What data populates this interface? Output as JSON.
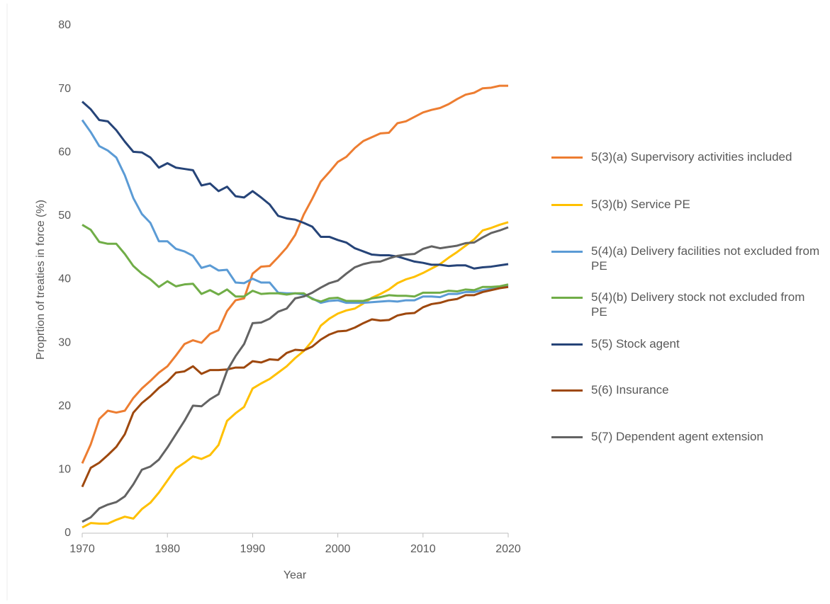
{
  "chart_data": {
    "type": "line",
    "x_label": "Year",
    "y_label": "Proprtion of treaties in force (%)",
    "x": [
      1970,
      1971,
      1972,
      1973,
      1974,
      1975,
      1976,
      1977,
      1978,
      1979,
      1980,
      1981,
      1982,
      1983,
      1984,
      1985,
      1986,
      1987,
      1988,
      1989,
      1990,
      1991,
      1992,
      1993,
      1994,
      1995,
      1996,
      1997,
      1998,
      1999,
      2000,
      2001,
      2002,
      2003,
      2004,
      2005,
      2006,
      2007,
      2008,
      2009,
      2010,
      2011,
      2012,
      2013,
      2014,
      2015,
      2016,
      2017,
      2018,
      2019,
      2020
    ],
    "xlim": [
      1970,
      2020
    ],
    "xticks": [
      1970,
      1980,
      1990,
      2000,
      2010,
      2020
    ],
    "ylim": [
      0,
      80
    ],
    "yticks": [
      0,
      10,
      20,
      30,
      40,
      50,
      60,
      70,
      80
    ],
    "grid": false,
    "legend": "right",
    "series": [
      {
        "name": "5(3)(a) Supervisory activities included",
        "color": "#ed7d31",
        "values": [
          11,
          14,
          18,
          19.3,
          19,
          19.3,
          21.3,
          22.8,
          24,
          25.3,
          26.3,
          28,
          29.8,
          30.4,
          30,
          31.4,
          32,
          35,
          36.7,
          37,
          40.9,
          42,
          42.1,
          43.5,
          45,
          47,
          50.2,
          52.7,
          55.4,
          56.9,
          58.5,
          59.3,
          60.7,
          61.8,
          62.4,
          63,
          63.1,
          64.6,
          64.9,
          65.6,
          66.3,
          66.7,
          67,
          67.6,
          68.4,
          69.1,
          69.4,
          70.1,
          70.2,
          70.5,
          70.5
        ]
      },
      {
        "name": "5(3)(b) Service PE",
        "color": "#ffc000",
        "values": [
          0.9,
          1.6,
          1.5,
          1.5,
          2.1,
          2.6,
          2.3,
          3.8,
          4.8,
          6.4,
          8.3,
          10.2,
          11.1,
          12.1,
          11.7,
          12.3,
          13.9,
          17.7,
          18.9,
          19.9,
          22.8,
          23.6,
          24.3,
          25.3,
          26.3,
          27.6,
          28.7,
          30.3,
          32.7,
          33.8,
          34.6,
          35.1,
          35.4,
          36.2,
          37.1,
          37.7,
          38.4,
          39.4,
          40,
          40.4,
          41,
          41.7,
          42.4,
          43.4,
          44.3,
          45.3,
          46.3,
          47.7,
          48.1,
          48.6,
          49
        ]
      },
      {
        "name": "5(4)(a) Delivery facilities not excluded from PE",
        "color": "#5b9bd5",
        "values": [
          65.1,
          63.2,
          61,
          60.3,
          59.2,
          56.4,
          52.8,
          50.3,
          48.9,
          46,
          46,
          44.8,
          44.4,
          43.7,
          41.8,
          42.2,
          41.4,
          41.5,
          39.5,
          39.4,
          40.1,
          39.5,
          39.5,
          37.9,
          37.8,
          37.8,
          37.6,
          37,
          36.3,
          36.6,
          36.7,
          36.3,
          36.3,
          36.3,
          36.4,
          36.5,
          36.6,
          36.5,
          36.7,
          36.7,
          37.3,
          37.3,
          37.2,
          37.7,
          37.7,
          38,
          38,
          38.3,
          38.5,
          38.8,
          39
        ]
      },
      {
        "name": "5(4)(b) Delivery stock not excluded from PE",
        "color": "#70ad47",
        "values": [
          48.6,
          47.8,
          45.9,
          45.6,
          45.6,
          44,
          42.1,
          40.9,
          40,
          38.8,
          39.7,
          38.9,
          39.2,
          39.3,
          37.7,
          38.3,
          37.6,
          38.4,
          37.3,
          37.3,
          38.2,
          37.7,
          37.8,
          37.8,
          37.6,
          37.8,
          37.8,
          36.9,
          36.5,
          37,
          37.1,
          36.6,
          36.6,
          36.6,
          37,
          37.2,
          37.5,
          37.4,
          37.4,
          37.3,
          37.9,
          37.9,
          37.9,
          38.2,
          38.1,
          38.4,
          38.3,
          38.8,
          38.8,
          38.9,
          39.2
        ]
      },
      {
        "name": "5(5) Stock agent",
        "color": "#264478",
        "values": [
          68,
          66.8,
          65.1,
          64.9,
          63.5,
          61.7,
          60.1,
          60,
          59.2,
          57.6,
          58.3,
          57.6,
          57.4,
          57.2,
          54.8,
          55.1,
          53.9,
          54.6,
          53.1,
          52.9,
          53.9,
          52.9,
          51.8,
          50,
          49.6,
          49.4,
          48.9,
          48.3,
          46.7,
          46.7,
          46.2,
          45.8,
          44.9,
          44.4,
          43.9,
          43.8,
          43.8,
          43.6,
          43.2,
          42.8,
          42.6,
          42.3,
          42.3,
          42.1,
          42.2,
          42.2,
          41.7,
          41.9,
          42,
          42.2,
          42.4
        ]
      },
      {
        "name": "5(6) Insurance",
        "color": "#9e480e",
        "values": [
          7.3,
          10.3,
          11.1,
          12.3,
          13.6,
          15.6,
          19,
          20.5,
          21.6,
          22.9,
          23.9,
          25.3,
          25.5,
          26.3,
          25.1,
          25.7,
          25.7,
          25.8,
          26.1,
          26.1,
          27.1,
          26.9,
          27.4,
          27.3,
          28.4,
          28.9,
          28.8,
          29.4,
          30.5,
          31.3,
          31.8,
          31.9,
          32.4,
          33.1,
          33.7,
          33.5,
          33.6,
          34.3,
          34.6,
          34.7,
          35.6,
          36.1,
          36.3,
          36.7,
          36.9,
          37.5,
          37.5,
          38,
          38.3,
          38.6,
          38.8
        ]
      },
      {
        "name": "5(7) Dependent agent extension",
        "color": "#636363",
        "values": [
          1.8,
          2.5,
          3.9,
          4.5,
          4.9,
          5.8,
          7.7,
          10,
          10.5,
          11.6,
          13.5,
          15.6,
          17.7,
          20.1,
          20,
          21.1,
          21.9,
          25.6,
          27.9,
          29.8,
          33.1,
          33.2,
          33.8,
          34.9,
          35.4,
          37,
          37.3,
          37.9,
          38.7,
          39.4,
          39.8,
          40.9,
          41.9,
          42.4,
          42.7,
          42.8,
          43.3,
          43.7,
          43.9,
          44,
          44.8,
          45.2,
          44.9,
          45.1,
          45.3,
          45.7,
          45.8,
          46.6,
          47.3,
          47.7,
          48.2
        ]
      }
    ]
  }
}
